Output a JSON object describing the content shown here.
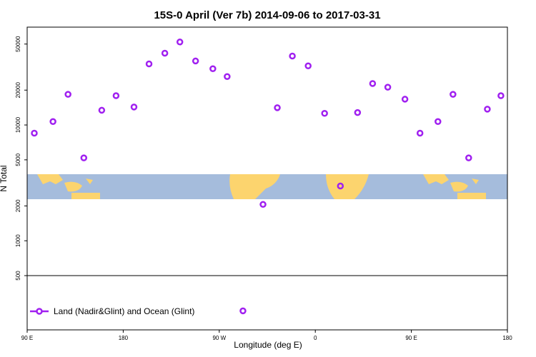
{
  "chart_data": {
    "type": "scatter",
    "title": "15S-0 April (Ver 7b)   2014-09-06 to 2017-03-31",
    "x_label": "Longitude (deg E)",
    "y_label": "N Total",
    "log_y": true,
    "xlim": [
      90,
      540
    ],
    "xticks": [
      {
        "value": 90,
        "label": "90 E"
      },
      180,
      {
        "value": 270,
        "label": "90 W"
      },
      {
        "value": 360,
        "label": "0"
      },
      {
        "value": 450,
        "label": "90 E"
      },
      {
        "value": 540,
        "label": "180"
      }
    ],
    "ylim": [
      170,
      70000
    ],
    "yticks": [
      500,
      1000,
      2000,
      5000,
      10000,
      20000,
      50000
    ],
    "hline": 500,
    "legend_position": "bottom-left",
    "series": [
      {
        "name": "Land (Nadir&Glint) and Ocean (Glint)",
        "color": "#a020f0",
        "x": [
          96.7,
          114.2,
          128.3,
          143.1,
          159.9,
          173.3,
          190.1,
          204.2,
          219,
          233.1,
          247.8,
          264,
          277.4,
          292.2,
          311,
          324.4,
          338.5,
          353.3,
          368.7,
          383.5,
          399.6,
          413.7,
          427.9,
          444,
          458.1,
          474.9,
          489,
          503.7,
          521.2,
          533.9
        ],
        "values": [
          8500,
          10700,
          18400,
          5200,
          13400,
          17900,
          14300,
          33700,
          41700,
          52100,
          35700,
          30600,
          26200,
          248,
          2060,
          14100,
          39400,
          32400,
          12600,
          2970,
          12800,
          22800,
          21200,
          16700,
          8500,
          10700,
          18400,
          5200,
          13700,
          17900
        ]
      }
    ]
  }
}
